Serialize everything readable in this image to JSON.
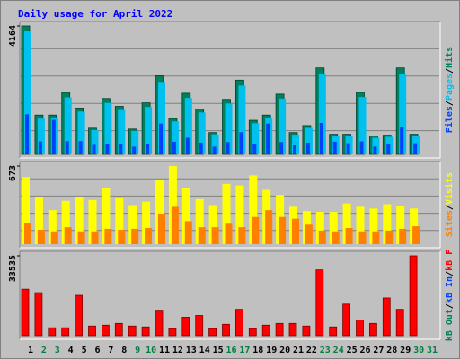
{
  "chart_data": [
    {
      "type": "bar",
      "title": "Daily usage for April 2022",
      "ylim": [
        0,
        4164
      ],
      "yticks": [
        4164
      ],
      "grid": true,
      "separator": "/",
      "series": [
        {
          "name": "Hits",
          "color": "#00805c",
          "values": [
            4164,
            1275,
            1275,
            2011,
            1501,
            850,
            1813,
            1558,
            821,
            1671,
            2549,
            1161,
            1983,
            1473,
            708,
            1785,
            2408,
            1105,
            1275,
            1955,
            708,
            935,
            2804,
            652,
            652,
            2011,
            595,
            623,
            2804,
            652,
            null
          ]
        },
        {
          "name": "Pages",
          "color": "#00c0f0",
          "values": [
            3990,
            1160,
            1180,
            1850,
            1390,
            790,
            1670,
            1440,
            760,
            1540,
            2350,
            1070,
            1830,
            1360,
            650,
            1650,
            2230,
            1010,
            1170,
            1810,
            640,
            860,
            2600,
            600,
            600,
            1860,
            540,
            570,
            2600,
            600,
            null
          ]
        },
        {
          "name": "Files",
          "color": "#0040ff",
          "values": [
            1300,
            420,
            1120,
            430,
            430,
            310,
            350,
            330,
            250,
            340,
            1000,
            410,
            540,
            380,
            250,
            400,
            720,
            330,
            1000,
            400,
            290,
            380,
            1020,
            410,
            360,
            420,
            250,
            330,
            900,
            360,
            null
          ]
        }
      ]
    },
    {
      "type": "bar",
      "ylim": [
        0,
        673
      ],
      "yticks": [
        673
      ],
      "grid": true,
      "separator": "/",
      "series": [
        {
          "name": "Visits",
          "color": "#ffff00",
          "values": [
            578,
            402,
            293,
            373,
            402,
            380,
            483,
            395,
            336,
            366,
            549,
            673,
            483,
            388,
            336,
            519,
            505,
            593,
            468,
            424,
            322,
            285,
            278,
            278,
            351,
            322,
            307,
            344,
            329,
            307,
            null
          ]
        },
        {
          "name": "Sites",
          "color": "#ff8000",
          "values": [
            183,
            124,
            110,
            146,
            110,
            110,
            132,
            124,
            132,
            139,
            263,
            322,
            198,
            146,
            146,
            176,
            146,
            234,
            293,
            234,
            219,
            168,
            117,
            110,
            139,
            110,
            110,
            117,
            132,
            154,
            null
          ]
        }
      ]
    },
    {
      "type": "bar",
      "ylim": [
        0,
        33535
      ],
      "yticks": [
        33535
      ],
      "grid": false,
      "separator": "/",
      "categories": [
        "1",
        "2",
        "3",
        "4",
        "5",
        "6",
        "7",
        "8",
        "9",
        "10",
        "11",
        "12",
        "13",
        "14",
        "15",
        "16",
        "17",
        "18",
        "19",
        "20",
        "21",
        "22",
        "23",
        "24",
        "25",
        "26",
        "27",
        "28",
        "29",
        "30",
        "31"
      ],
      "category_colors": [
        "#000000",
        "#008040",
        "#008040",
        "#000000",
        "#000000",
        "#000000",
        "#000000",
        "#000000",
        "#008040",
        "#008040",
        "#000000",
        "#000000",
        "#000000",
        "#000000",
        "#000000",
        "#008040",
        "#008040",
        "#000000",
        "#000000",
        "#000000",
        "#000000",
        "#000000",
        "#008040",
        "#008040",
        "#000000",
        "#000000",
        "#000000",
        "#000000",
        "#000000",
        "#008040",
        "#008040"
      ],
      "series": [
        {
          "name": "kB F",
          "color": "#ff0000",
          "values": [
            19531,
            18057,
            3317,
            3317,
            16952,
            4054,
            4422,
            5159,
            4054,
            3685,
            10687,
            2948,
            7739,
            8476,
            2948,
            4791,
            11055,
            2948,
            4422,
            5159,
            5159,
            4054,
            27639,
            3685,
            13266,
            6633,
            5159,
            15846,
            11055,
            33535,
            null
          ]
        },
        {
          "name": "kB In",
          "color": "#0040ff"
        },
        {
          "name": "kB Out",
          "color": "#00805c"
        }
      ]
    }
  ]
}
